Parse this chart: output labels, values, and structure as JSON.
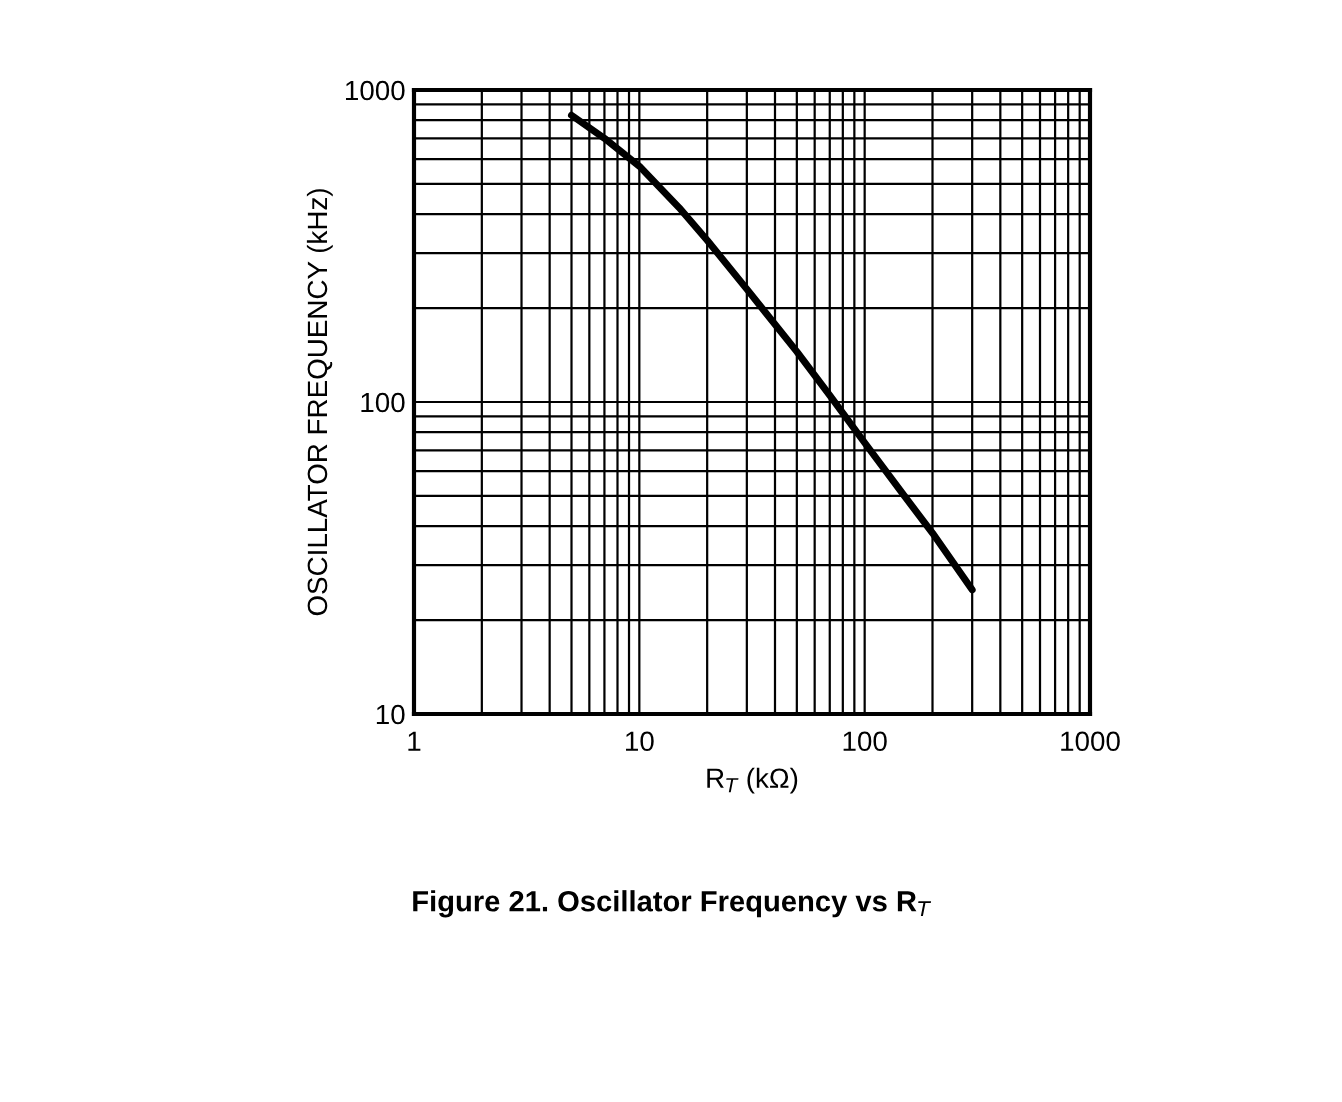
{
  "chart_data": {
    "type": "line",
    "title": "Figure 21. Oscillator Frequency vs R$_{T}$",
    "xlabel": "R$_{T}$ (kΩ)",
    "ylabel": "OSCILLATOR FREQUENCY (kHz)",
    "log": "xy",
    "grid": true,
    "xlim": [
      1,
      1000
    ],
    "ylim": [
      10,
      1000
    ],
    "xticks": [
      1,
      10,
      100,
      1000
    ],
    "yticks": [
      10,
      100,
      1000
    ],
    "x": [
      5,
      7,
      10,
      15,
      20,
      30,
      50,
      70,
      100,
      150,
      200,
      300
    ],
    "series": [
      {
        "color": "#000000",
        "values": [
          830,
          700,
          570,
          420,
          330,
          230,
          145,
          105,
          74,
          50,
          38,
          25
        ]
      }
    ]
  }
}
